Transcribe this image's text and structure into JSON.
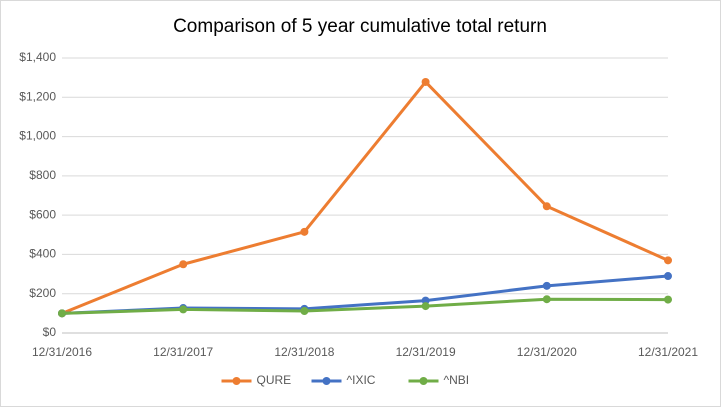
{
  "chart_data": {
    "type": "line",
    "title": "Comparison of 5 year cumulative total return",
    "categories": [
      "12/31/2016",
      "12/31/2017",
      "12/31/2018",
      "12/31/2019",
      "12/31/2020",
      "12/31/2021"
    ],
    "series": [
      {
        "name": "QURE",
        "color": "#ed7d31",
        "values": [
          100,
          350,
          515,
          1278,
          645,
          370
        ]
      },
      {
        "name": "^IXIC",
        "color": "#4472c4",
        "values": [
          100,
          127,
          123,
          165,
          240,
          290
        ]
      },
      {
        "name": "^NBI",
        "color": "#70ad47",
        "values": [
          100,
          120,
          112,
          137,
          172,
          170
        ]
      }
    ],
    "ylim": [
      0,
      1400
    ],
    "yticks": [
      {
        "value": 0,
        "label": "$0"
      },
      {
        "value": 200,
        "label": "$200"
      },
      {
        "value": 400,
        "label": "$400"
      },
      {
        "value": 600,
        "label": "$600"
      },
      {
        "value": 800,
        "label": "$800"
      },
      {
        "value": 1000,
        "label": "$1,000"
      },
      {
        "value": 1200,
        "label": "$1,200"
      },
      {
        "value": 1400,
        "label": "$1,400"
      }
    ],
    "grid": true,
    "legend": "bottom"
  }
}
